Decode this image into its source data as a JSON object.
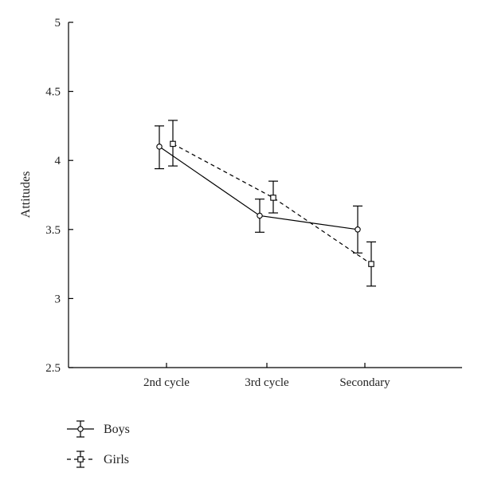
{
  "chart_data": {
    "type": "line",
    "title": "",
    "xlabel": "",
    "ylabel": "Attitudes",
    "categories": [
      "2nd cycle",
      "3rd cycle",
      "Secondary"
    ],
    "ylim": [
      2.5,
      5
    ],
    "yticks": [
      "2.5",
      "3",
      "3.5",
      "4",
      "4.5",
      "5"
    ],
    "grid": false,
    "legend_position": "bottom-left",
    "series": [
      {
        "name": "Boys",
        "marker": "circle",
        "line_style": "solid",
        "values": [
          4.1,
          3.6,
          3.5
        ],
        "error_low": [
          3.94,
          3.48,
          3.33
        ],
        "error_high": [
          4.25,
          3.72,
          3.67
        ]
      },
      {
        "name": "Girls",
        "marker": "square",
        "line_style": "dashed",
        "values": [
          4.12,
          3.73,
          3.25
        ],
        "error_low": [
          3.96,
          3.62,
          3.09
        ],
        "error_high": [
          4.29,
          3.85,
          3.41
        ]
      }
    ]
  }
}
